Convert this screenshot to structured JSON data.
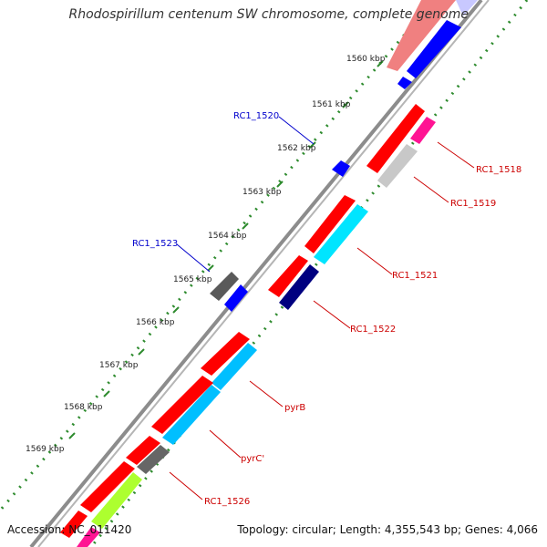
{
  "title": "Rhodospirillum centenum SW chromosome, complete genome",
  "footer": {
    "accession": "Accession: NC_011420",
    "summary": "Topology: circular; Length: 4,355,543 bp; Genes: 4,066"
  },
  "ticks": [
    "1560 kbp",
    "1561 kbp",
    "1562 kbp",
    "1563 kbp",
    "1564 kbp",
    "1565 kbp",
    "1566 kbp",
    "1567 kbp",
    "1568 kbp",
    "1569 kbp"
  ],
  "genes_minus": [
    "RC1_1520",
    "RC1_1523"
  ],
  "genes_plus": [
    "RC1_1518",
    "RC1_1519",
    "RC1_1521",
    "RC1_1522",
    "pyrB",
    "pyrC'",
    "RC1_1526"
  ],
  "colors": {
    "backbone": "#8c8c8c",
    "tick_green": "#2e8b2e",
    "red": "#ff0000",
    "blue": "#0000ff",
    "cyan": "#00e5ff",
    "sky": "#00bfff",
    "navy": "#000080",
    "magenta": "#ff1493",
    "gray": "#777777",
    "lightgray": "#c8c8c8",
    "lime": "#adff2f",
    "label_red": "#cc0000",
    "label_blue": "#0000cc"
  }
}
